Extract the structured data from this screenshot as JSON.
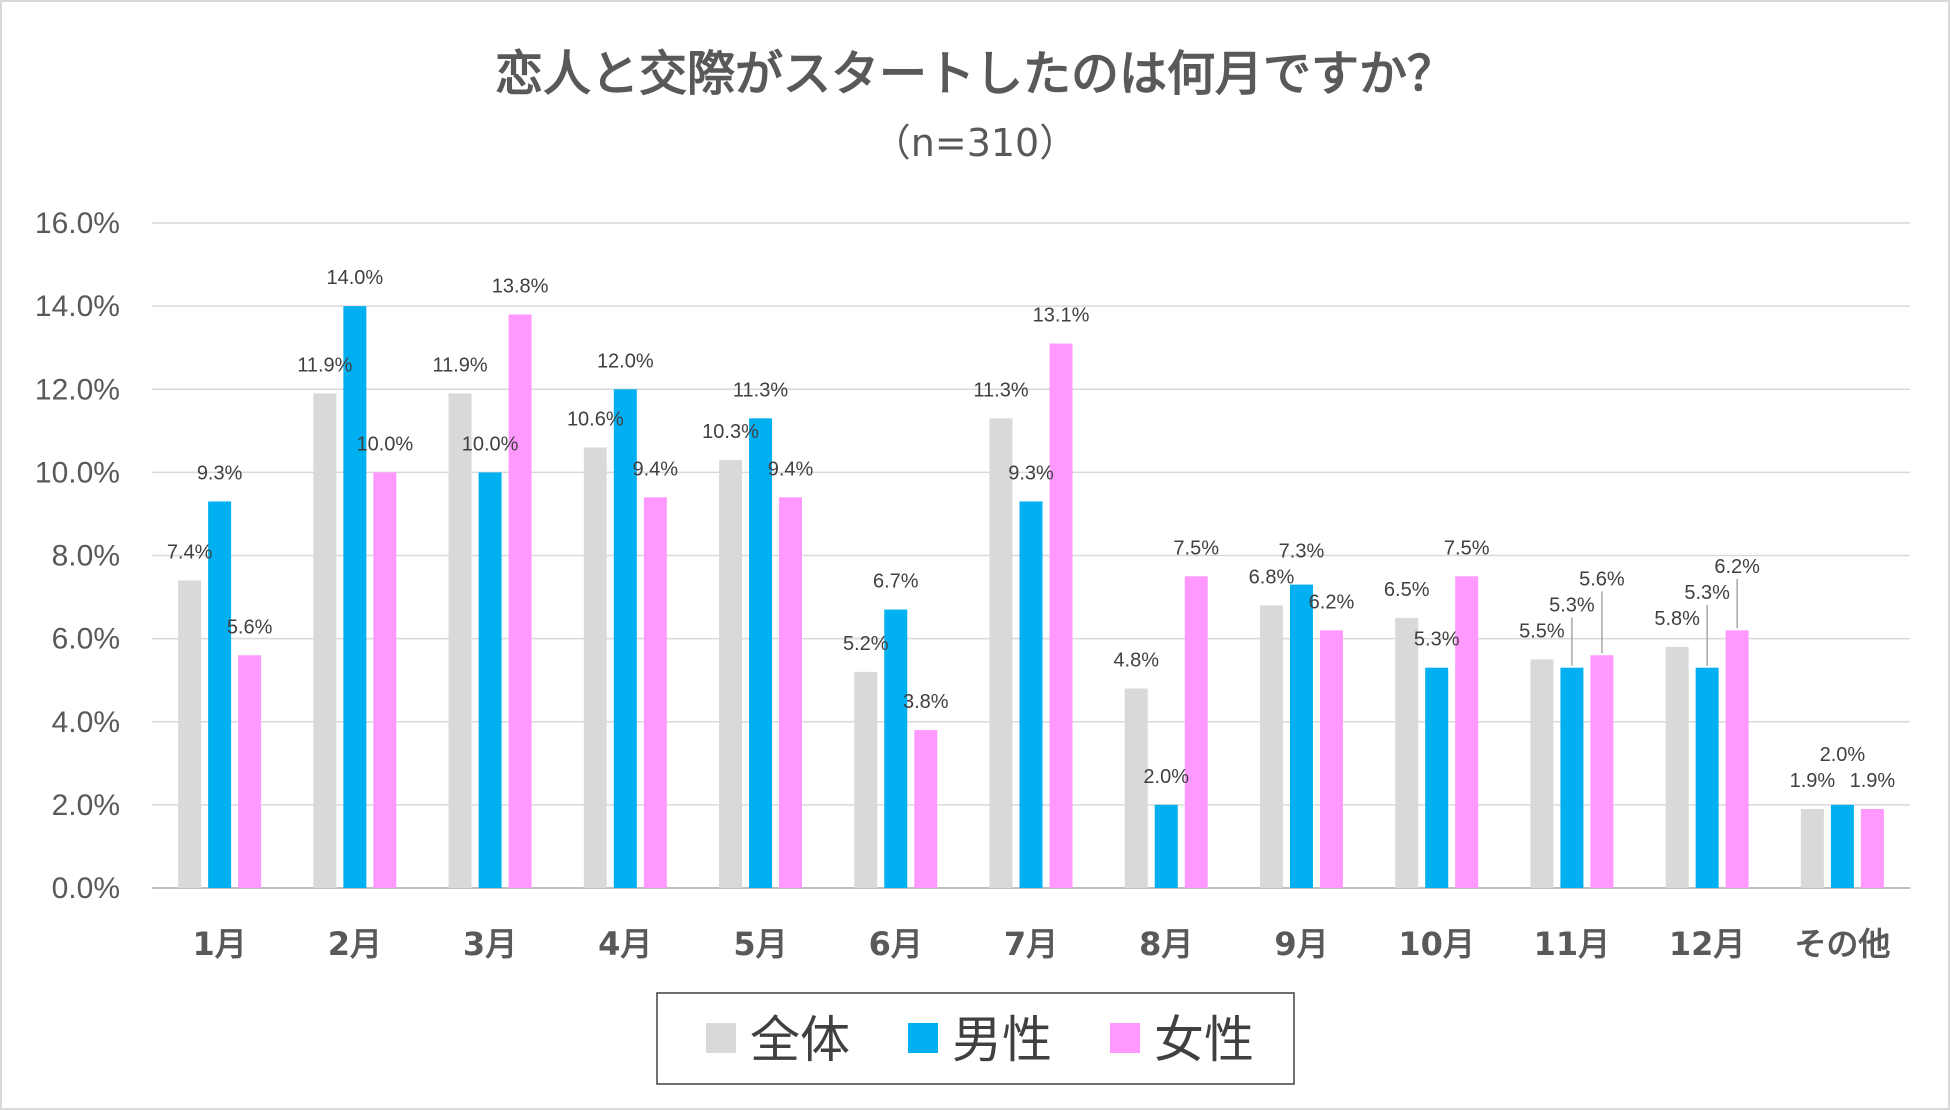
{
  "chart_data": {
    "type": "bar",
    "title": "恋人と交際がスタートしたのは何月ですか？",
    "subtitle": "（n=310）",
    "xlabel": "",
    "ylabel": "",
    "ylim": [
      0,
      16
    ],
    "yticks": [
      "0.0%",
      "2.0%",
      "4.0%",
      "6.0%",
      "8.0%",
      "10.0%",
      "12.0%",
      "14.0%",
      "16.0%"
    ],
    "grid": true,
    "legend_position": "bottom",
    "categories": [
      "1月",
      "2月",
      "3月",
      "4月",
      "5月",
      "6月",
      "7月",
      "8月",
      "9月",
      "10月",
      "11月",
      "12月",
      "その他"
    ],
    "series": [
      {
        "name": "全体",
        "color": "#d9d9d9",
        "values": [
          7.4,
          11.9,
          11.9,
          10.6,
          10.3,
          5.2,
          11.3,
          4.8,
          6.8,
          6.5,
          5.5,
          5.8,
          1.9
        ],
        "labels": [
          "7.4%",
          "11.9%",
          "11.9%",
          "10.6%",
          "10.3%",
          "5.2%",
          "11.3%",
          "4.8%",
          "6.8%",
          "6.5%",
          "5.5%",
          "5.8%",
          "1.9%"
        ]
      },
      {
        "name": "男性",
        "color": "#00b0f0",
        "values": [
          9.3,
          14.0,
          10.0,
          12.0,
          11.3,
          6.7,
          9.3,
          2.0,
          7.3,
          5.3,
          5.3,
          5.3,
          2.0
        ],
        "labels": [
          "9.3%",
          "14.0%",
          "10.0%",
          "12.0%",
          "11.3%",
          "6.7%",
          "9.3%",
          "2.0%",
          "7.3%",
          "5.3%",
          "5.3%",
          "5.3%",
          "2.0%"
        ]
      },
      {
        "name": "女性",
        "color": "#ff99ff",
        "values": [
          5.6,
          10.0,
          13.8,
          9.4,
          9.4,
          3.8,
          13.1,
          7.5,
          6.2,
          7.5,
          5.6,
          6.2,
          1.9
        ],
        "labels": [
          "5.6%",
          "10.0%",
          "13.8%",
          "9.4%",
          "9.4%",
          "3.8%",
          "13.1%",
          "7.5%",
          "6.2%",
          "7.5%",
          "5.6%",
          "6.2%",
          "1.9%"
        ]
      }
    ]
  }
}
